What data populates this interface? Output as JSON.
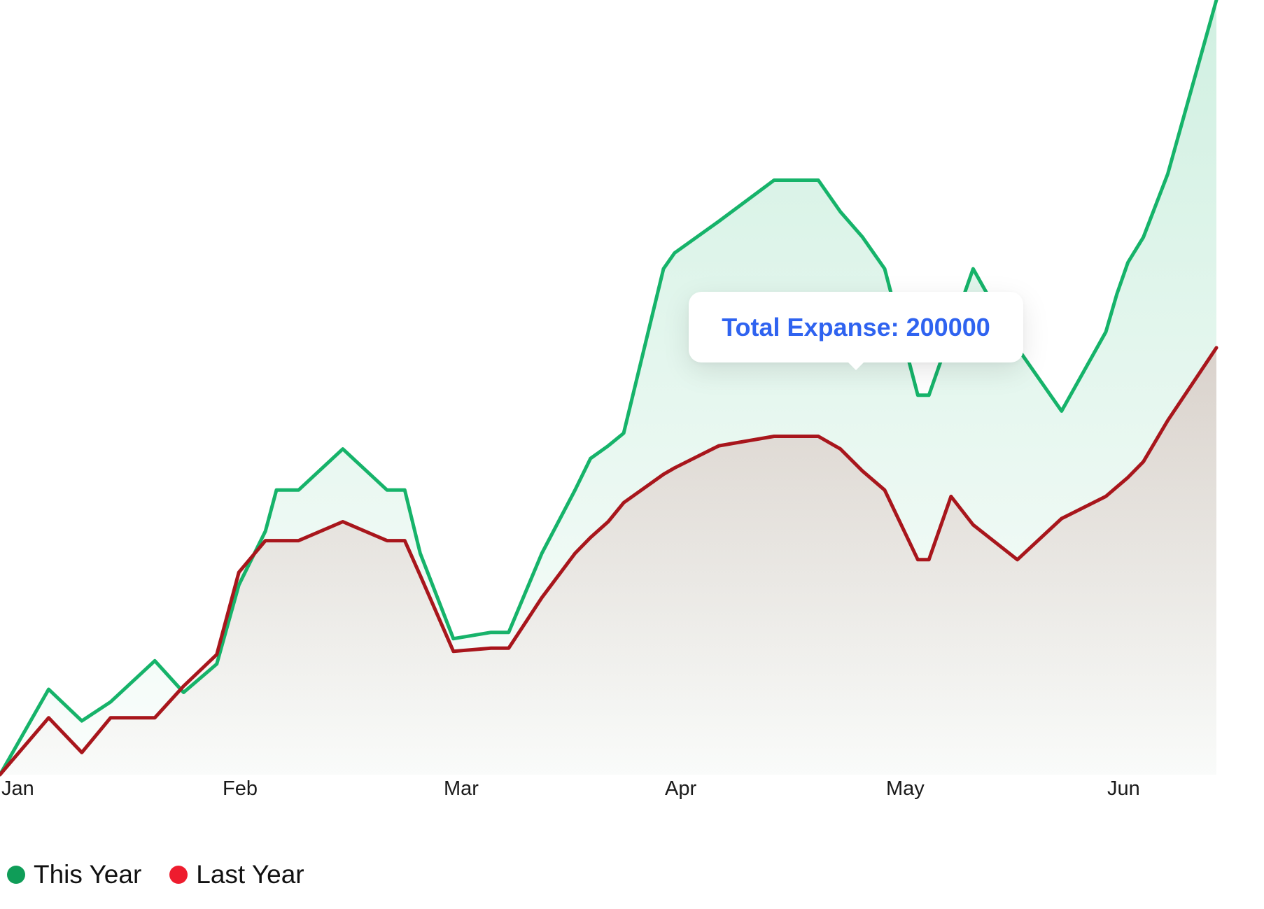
{
  "chart_data": {
    "type": "area",
    "x_ticks": [
      "Jan",
      "Feb",
      "Mar",
      "Apr",
      "May",
      "Jun"
    ],
    "x": [
      0,
      0.22,
      0.37,
      0.5,
      0.7,
      0.83,
      0.98,
      1.08,
      1.2,
      1.25,
      1.35,
      1.55,
      1.75,
      1.83,
      1.9,
      2.05,
      2.22,
      2.3,
      2.45,
      2.6,
      2.67,
      2.75,
      2.82,
      3.0,
      3.05,
      3.25,
      3.5,
      3.7,
      3.8,
      3.9,
      4.0,
      4.15,
      4.2,
      4.3,
      4.4,
      4.6,
      4.8,
      5.0,
      5.05,
      5.1,
      5.17,
      5.28,
      5.5
    ],
    "series": [
      {
        "name": "This Year",
        "color": "#16b36a",
        "values": [
          0,
          27,
          17,
          23,
          36,
          26,
          35,
          60,
          77,
          90,
          90,
          103,
          90,
          90,
          70,
          43,
          45,
          45,
          70,
          90,
          100,
          104,
          108,
          160,
          165,
          175,
          188,
          188,
          178,
          170,
          160,
          120,
          120,
          140,
          160,
          135,
          115,
          140,
          152,
          162,
          170,
          190,
          245
        ]
      },
      {
        "name": "Last Year",
        "color": "#a8161c",
        "values": [
          0,
          18,
          7,
          18,
          18,
          28,
          38,
          64,
          74,
          74,
          74,
          80,
          74,
          74,
          63,
          39,
          40,
          40,
          56,
          70,
          75,
          80,
          86,
          95,
          97,
          104,
          107,
          107,
          103,
          96,
          90,
          68,
          68,
          88,
          79,
          68,
          81,
          88,
          91,
          94,
          99,
          112,
          135
        ]
      }
    ],
    "ylim": [
      0,
      245
    ],
    "grid": false,
    "legend": "bottom-left",
    "annotation": "Total Expanse: 200000"
  },
  "legend": {
    "this_year_label": "This Year",
    "this_year_color": "#0f9d58",
    "last_year_label": "Last Year",
    "last_year_color": "#ee1c2e"
  }
}
